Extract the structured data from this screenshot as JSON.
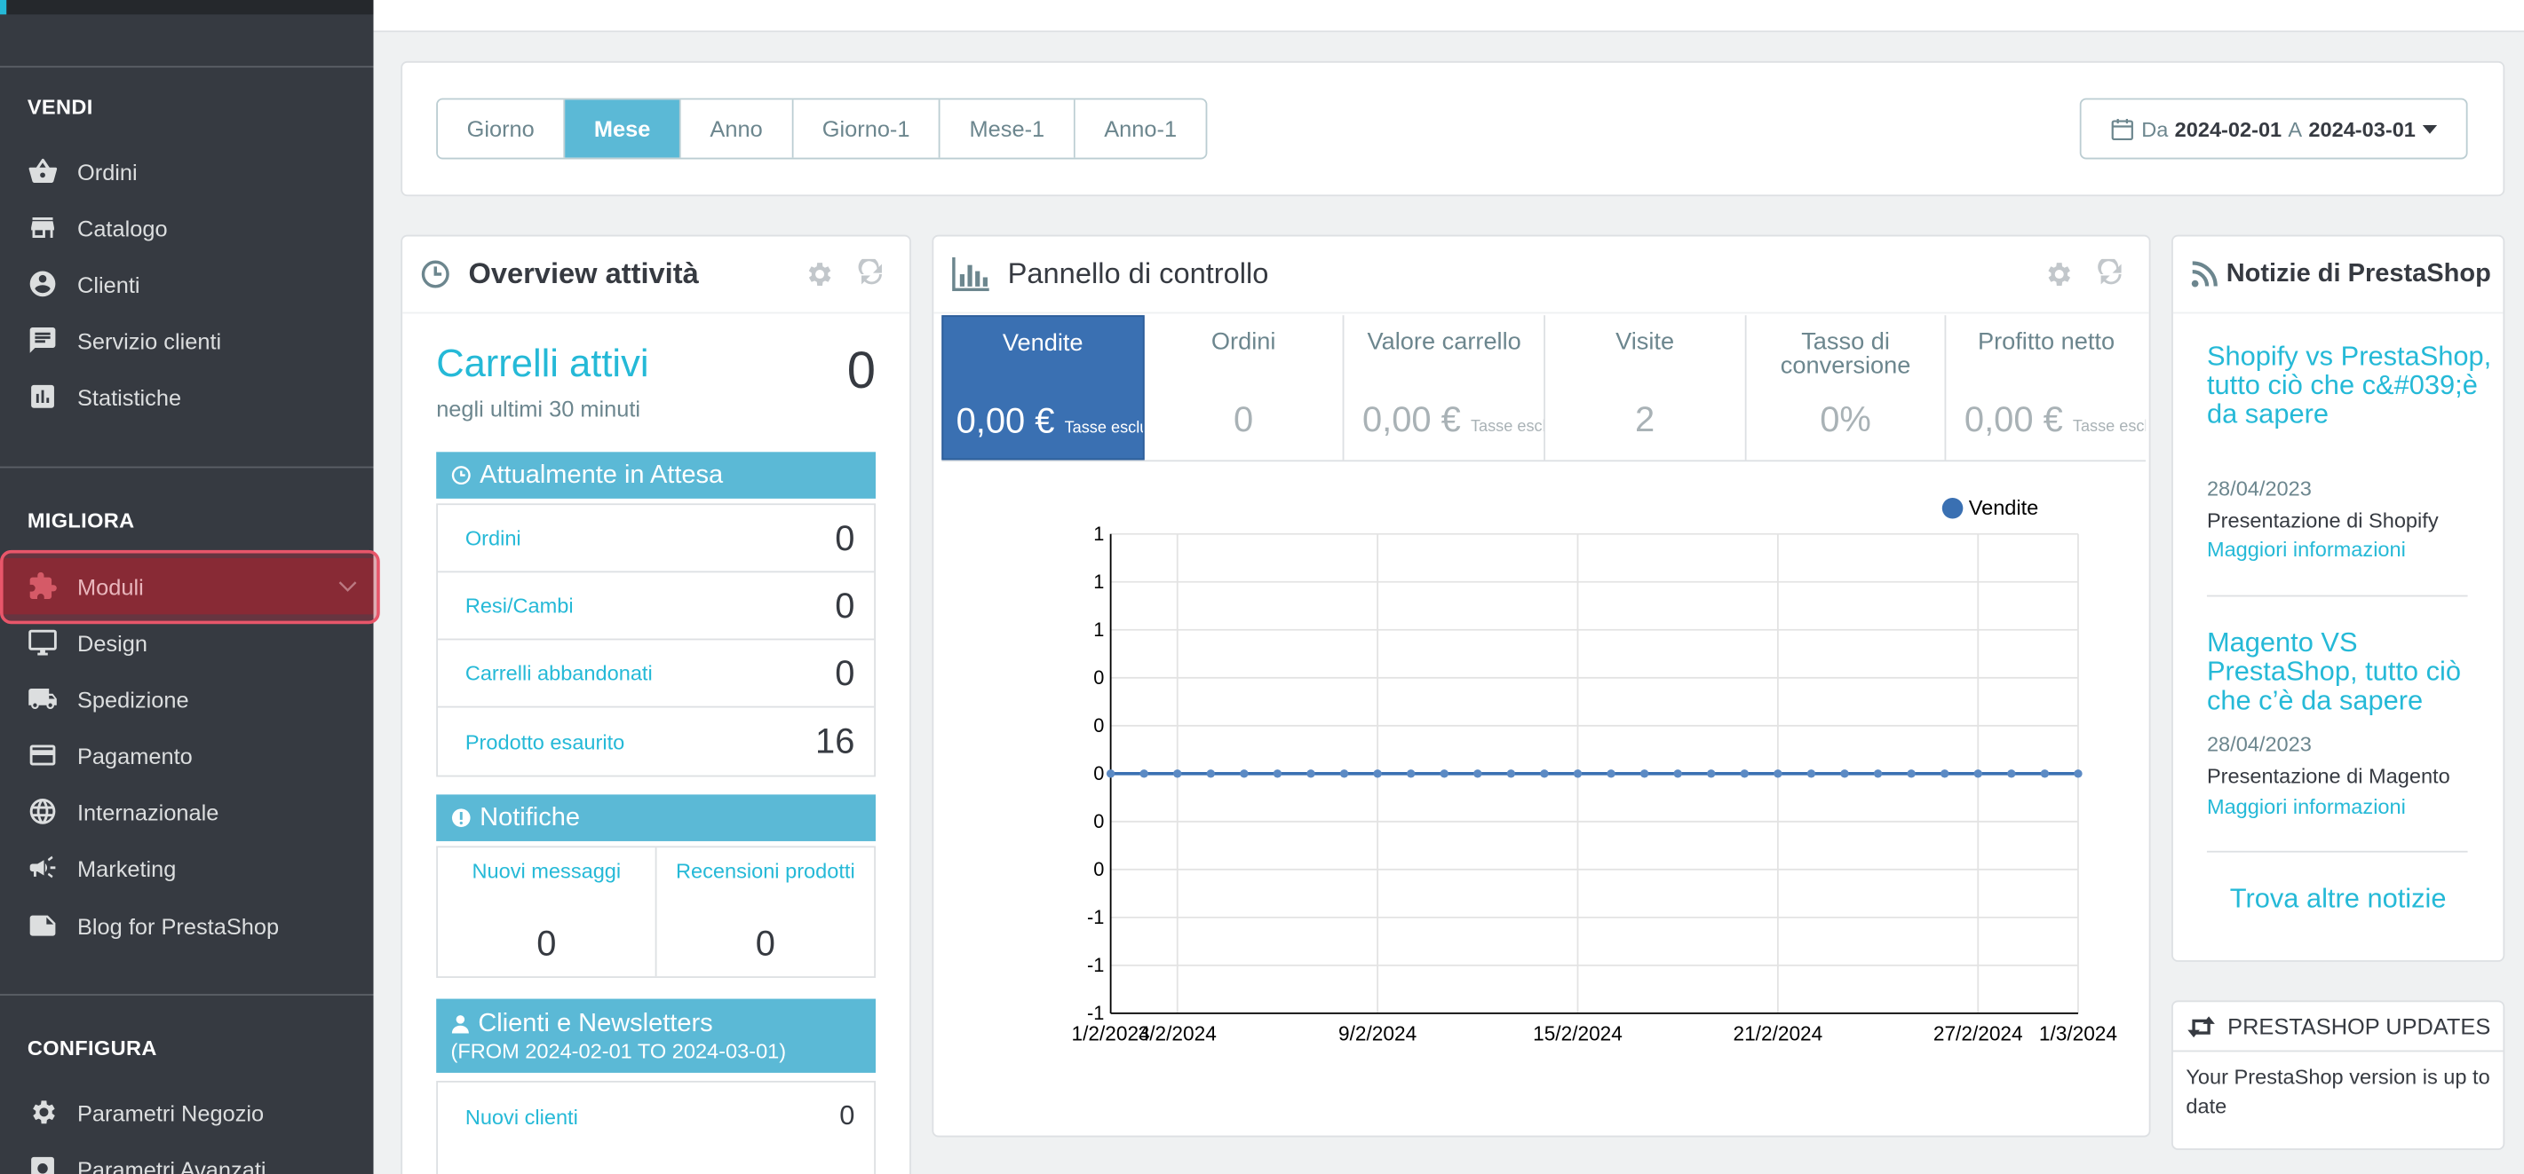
{
  "sidebar": {
    "sections": {
      "vendi": "VENDI",
      "migliora": "MIGLIORA",
      "configura": "CONFIGURA"
    },
    "vendi_items": [
      {
        "label": "Ordini",
        "icon": "basket-icon"
      },
      {
        "label": "Catalogo",
        "icon": "store-icon"
      },
      {
        "label": "Clienti",
        "icon": "account-icon"
      },
      {
        "label": "Servizio clienti",
        "icon": "chat-icon"
      },
      {
        "label": "Statistiche",
        "icon": "stats-icon"
      }
    ],
    "migliora_items": [
      {
        "label": "Moduli",
        "icon": "puzzle-icon"
      },
      {
        "label": "Design",
        "icon": "desktop-icon"
      },
      {
        "label": "Spedizione",
        "icon": "truck-icon"
      },
      {
        "label": "Pagamento",
        "icon": "credit-card-icon"
      },
      {
        "label": "Internazionale",
        "icon": "globe-icon"
      },
      {
        "label": "Marketing",
        "icon": "megaphone-icon"
      },
      {
        "label": "Blog for PrestaShop",
        "icon": "note-icon"
      }
    ],
    "configura_items": [
      {
        "label": "Parametri Negozio",
        "icon": "gear-icon"
      },
      {
        "label": "Parametri Avanzati",
        "icon": "settings-applications-icon"
      }
    ]
  },
  "period_filter": {
    "buttons": [
      "Giorno",
      "Mese",
      "Anno",
      "Giorno-1",
      "Mese-1",
      "Anno-1"
    ],
    "selected": "Mese",
    "date_from_label": "Da",
    "date_from": "2024-02-01",
    "date_to_label": "A",
    "date_to": "2024-03-01"
  },
  "overview": {
    "title": "Overview attività",
    "active_carts_label": "Carrelli attivi",
    "active_carts_sub": "negli ultimi 30 minuti",
    "active_carts_value": "0",
    "pending_title": "Attualmente in Attesa",
    "pending_rows": [
      {
        "label": "Ordini",
        "value": "0"
      },
      {
        "label": "Resi/Cambi",
        "value": "0"
      },
      {
        "label": "Carrelli abbandonati",
        "value": "0"
      },
      {
        "label": "Prodotto esaurito",
        "value": "16"
      }
    ],
    "notifications_title": "Notifiche",
    "notifications": [
      {
        "label": "Nuovi messaggi",
        "value": "0"
      },
      {
        "label": "Recensioni prodotti",
        "value": "0"
      }
    ],
    "clients_title": "Clienti e Newsletters",
    "clients_range": "(FROM 2024-02-01 TO 2024-03-01)",
    "clients_rows": [
      {
        "label": "Nuovi clienti",
        "value": "0"
      }
    ]
  },
  "dashboard": {
    "title": "Pannello di controllo",
    "kpis": [
      {
        "label": "Vendite",
        "value": "0,00 €",
        "suffix": "Tasse escluse"
      },
      {
        "label": "Ordini",
        "value": "0",
        "suffix": ""
      },
      {
        "label": "Valore carrello",
        "value": "0,00 €",
        "suffix": "Tasse escluse"
      },
      {
        "label": "Visite",
        "value": "2",
        "suffix": ""
      },
      {
        "label": "Tasso di conversione",
        "value": "0%",
        "suffix": ""
      },
      {
        "label": "Profitto netto",
        "value": "0,00 €",
        "suffix": "Tasse escluse"
      }
    ],
    "selected_kpi": "Vendite"
  },
  "chart_data": {
    "type": "line",
    "series": [
      {
        "name": "Vendite",
        "color": "#3a70b2",
        "values": [
          0,
          0,
          0,
          0,
          0,
          0,
          0,
          0,
          0,
          0,
          0,
          0,
          0,
          0,
          0,
          0,
          0,
          0,
          0,
          0,
          0,
          0,
          0,
          0,
          0,
          0,
          0,
          0,
          0,
          0
        ]
      }
    ],
    "x": [
      "1/2/2024",
      "2/2/2024",
      "3/2/2024",
      "4/2/2024",
      "5/2/2024",
      "6/2/2024",
      "7/2/2024",
      "8/2/2024",
      "9/2/2024",
      "10/2/2024",
      "11/2/2024",
      "12/2/2024",
      "13/2/2024",
      "14/2/2024",
      "15/2/2024",
      "16/2/2024",
      "17/2/2024",
      "18/2/2024",
      "19/2/2024",
      "20/2/2024",
      "21/2/2024",
      "22/2/2024",
      "23/2/2024",
      "24/2/2024",
      "25/2/2024",
      "26/2/2024",
      "27/2/2024",
      "28/2/2024",
      "29/2/2024",
      "1/3/2024"
    ],
    "x_tick_labels": [
      "1/2/2024",
      "3/2/2024",
      "9/2/2024",
      "15/2/2024",
      "21/2/2024",
      "27/2/2024",
      "1/3/2024"
    ],
    "y_tick_labels": [
      "1",
      "1",
      "1",
      "0",
      "0",
      "0",
      "0",
      "0",
      "-1",
      "-1",
      "-1"
    ],
    "ylim": [
      -1,
      1
    ],
    "grid": true,
    "legend": "top-right"
  },
  "news": {
    "title": "Notizie di PrestaShop",
    "items": [
      {
        "title": "Shopify vs PrestaShop, tutto ciò che c&#039;è da sapere",
        "date": "28/04/2023",
        "desc": "Presentazione di Shopify",
        "more": "Maggiori informazioni"
      },
      {
        "title": "Magento VS PrestaShop, tutto ciò che c’è da sapere",
        "date": "28/04/2023",
        "desc": "Presentazione di Magento",
        "more": "Maggiori informazioni"
      }
    ],
    "find_more": "Trova altre notizie"
  },
  "updates": {
    "title": "PRESTASHOP UPDATES",
    "text": "Your PrestaShop version is up to date"
  }
}
